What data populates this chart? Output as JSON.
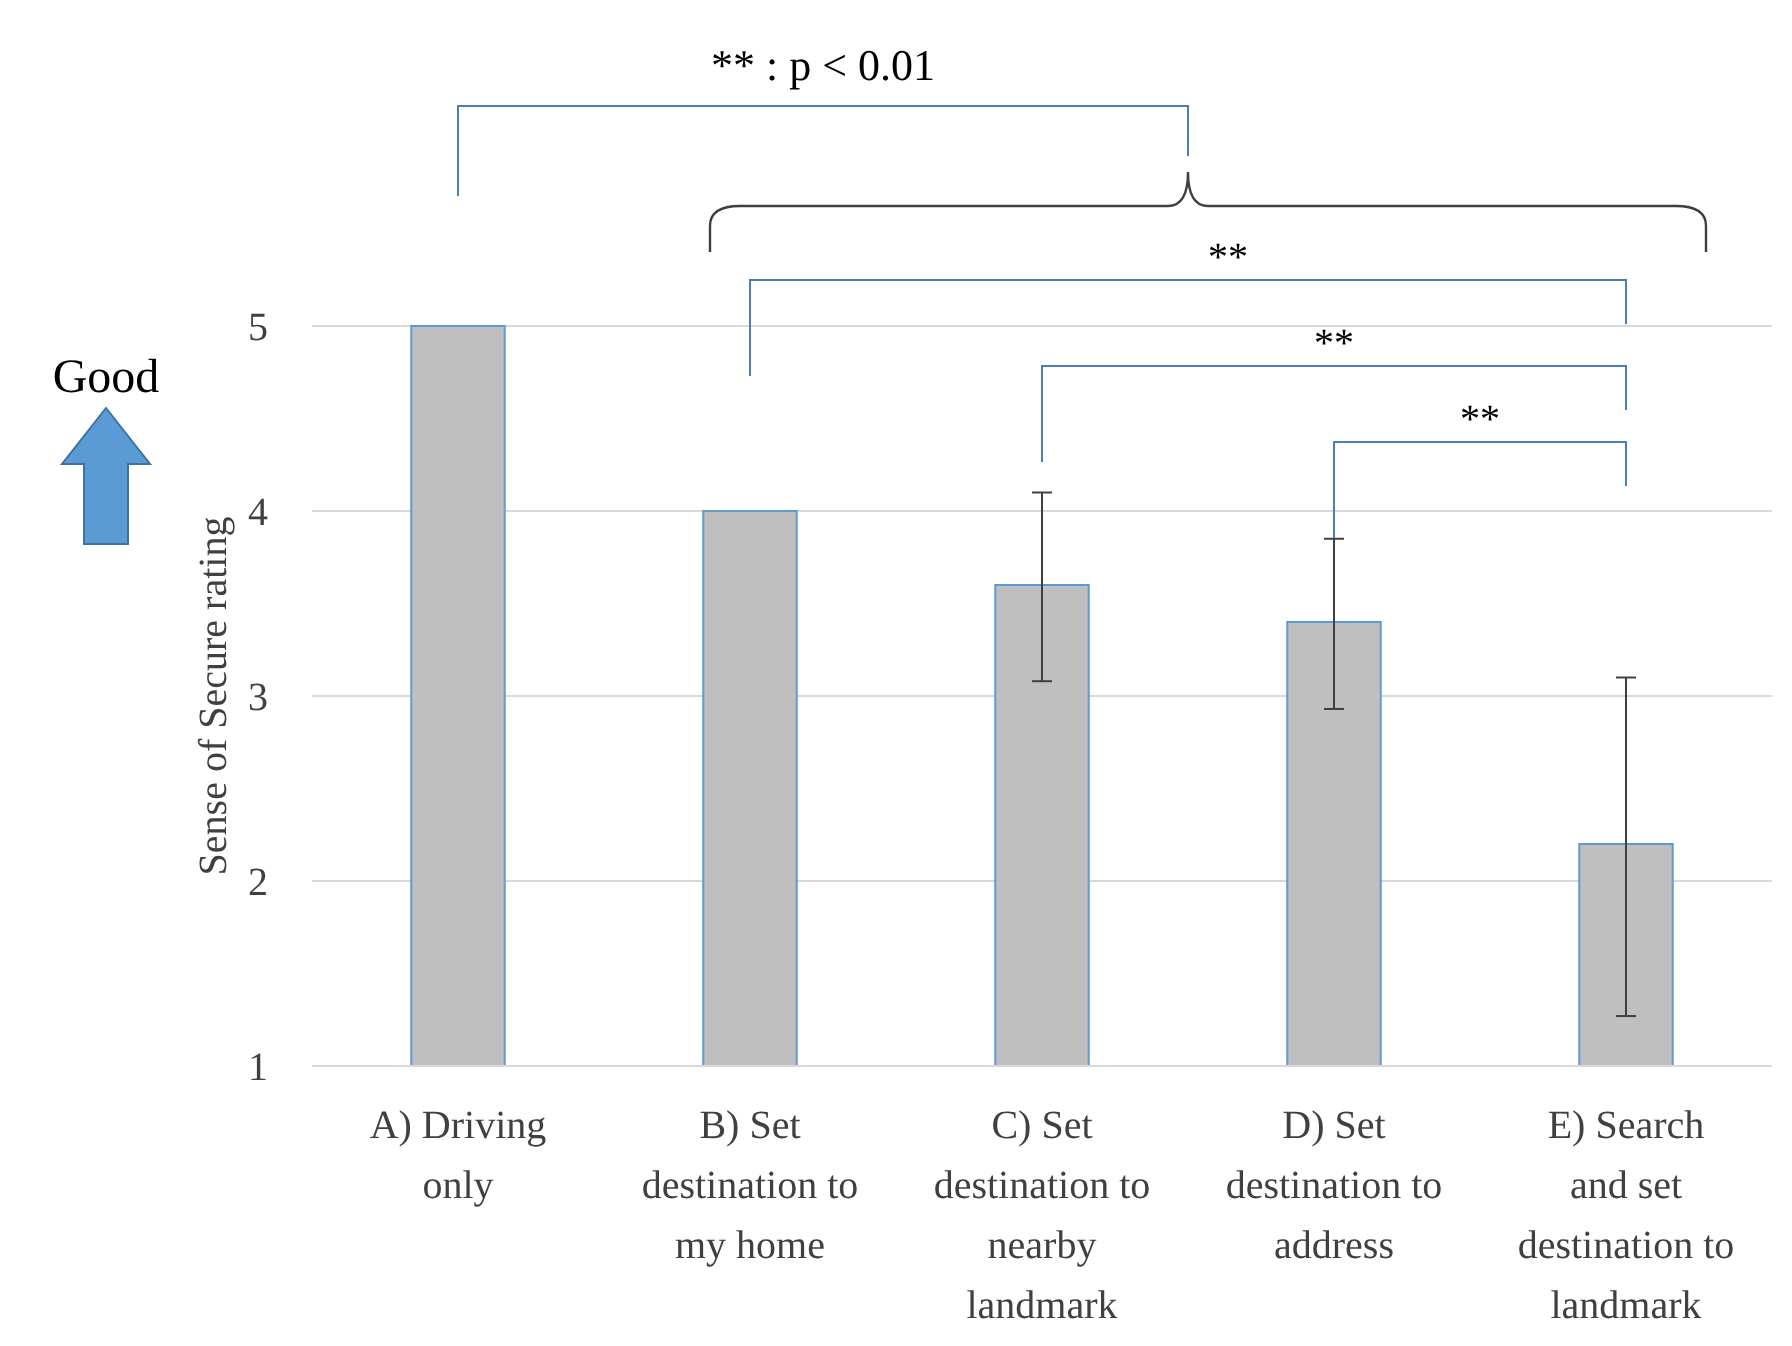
{
  "chart_data": {
    "type": "bar",
    "ylabel": "Sense of Secure rating",
    "categories": [
      "A) Driving\nonly",
      "B) Set\ndestination to\nmy home",
      "C) Set\ndestination to\nnearby\nlandmark",
      "D) Set\ndestination to\naddress",
      "E) Search\nand set\ndestination to\nlandmark"
    ],
    "values": [
      5,
      4,
      3.6,
      3.4,
      2.2
    ],
    "errors": [
      null,
      null,
      [
        3.08,
        4.1
      ],
      [
        2.93,
        3.85
      ],
      [
        1.27,
        3.1
      ]
    ],
    "color": "#bfbfbf",
    "ylim": [
      1,
      5
    ],
    "yticks": [
      1,
      2,
      3,
      4,
      5
    ],
    "grid": "y",
    "annotations": [
      "** : p < 0.01",
      "**",
      "**",
      "**",
      "Good"
    ]
  }
}
